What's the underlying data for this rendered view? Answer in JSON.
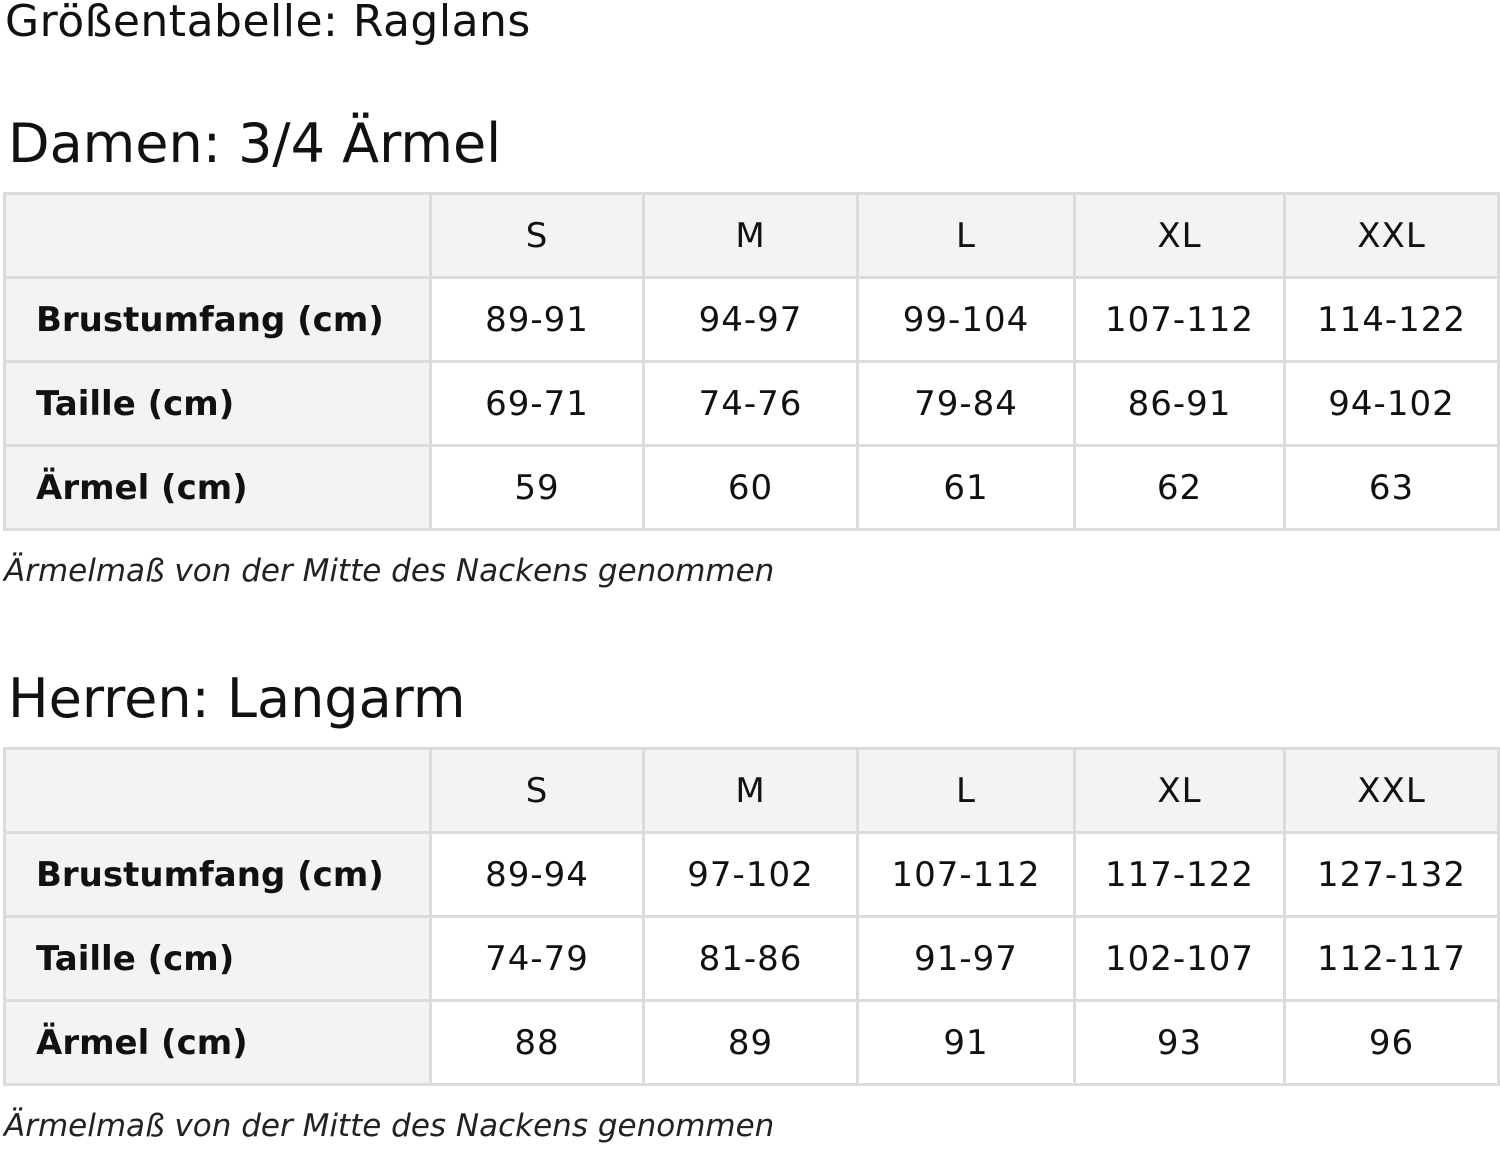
{
  "title": "Größentabelle: Raglans",
  "sections": [
    {
      "heading": "Damen: 3/4 Ärmel",
      "sizes": [
        "S",
        "M",
        "L",
        "XL",
        "XXL"
      ],
      "rows": [
        {
          "label": "Brustumfang (cm)",
          "values": [
            "89-91",
            "94-97",
            "99-104",
            "107-112",
            "114-122"
          ]
        },
        {
          "label": "Taille (cm)",
          "values": [
            "69-71",
            "74-76",
            "79-84",
            "86-91",
            "94-102"
          ]
        },
        {
          "label": "Ärmel (cm)",
          "values": [
            "59",
            "60",
            "61",
            "62",
            "63"
          ]
        }
      ],
      "note": "Ärmelmaß von der Mitte des Nackens genommen"
    },
    {
      "heading": "Herren: Langarm",
      "sizes": [
        "S",
        "M",
        "L",
        "XL",
        "XXL"
      ],
      "rows": [
        {
          "label": "Brustumfang (cm)",
          "values": [
            "89-94",
            "97-102",
            "107-112",
            "117-122",
            "127-132"
          ]
        },
        {
          "label": "Taille (cm)",
          "values": [
            "74-79",
            "81-86",
            "91-97",
            "102-107",
            "112-117"
          ]
        },
        {
          "label": "Ärmel (cm)",
          "values": [
            "88",
            "89",
            "91",
            "93",
            "96"
          ]
        }
      ],
      "note": "Ärmelmaß von der Mitte des Nackens genommen"
    }
  ]
}
